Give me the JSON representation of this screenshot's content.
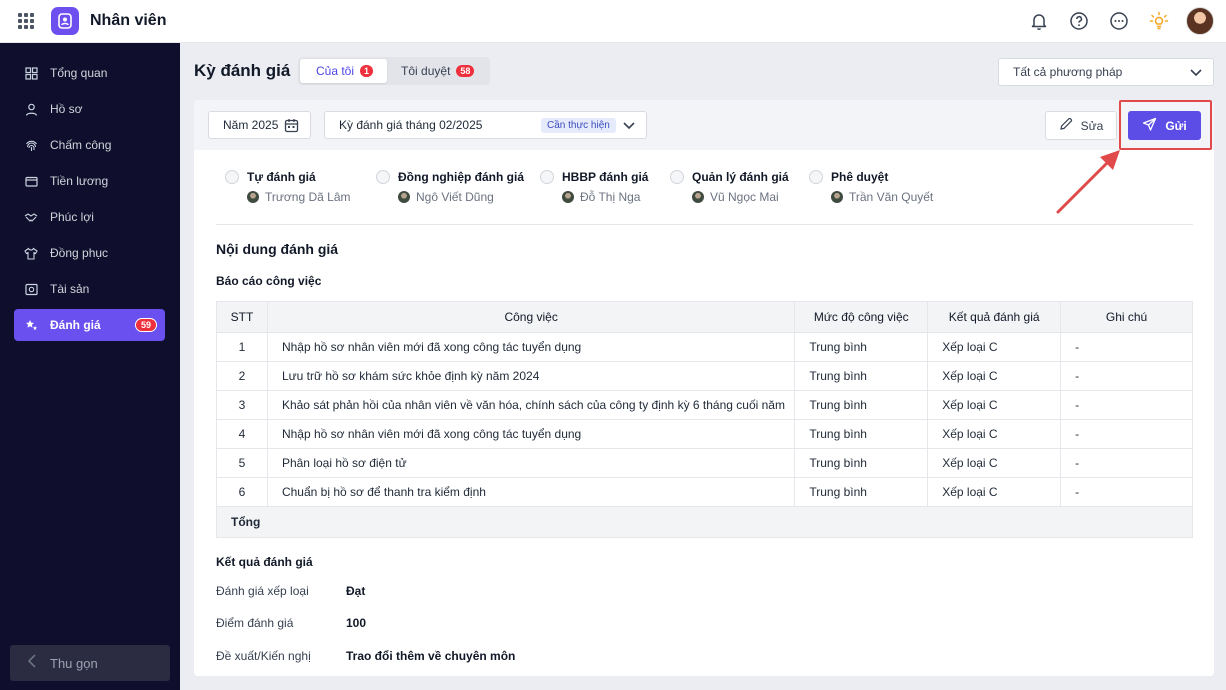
{
  "app": {
    "title": "Nhân viên"
  },
  "top_icons": [
    "bell-icon",
    "help-icon",
    "more-icon",
    "lightbulb-icon",
    "user-avatar"
  ],
  "sidebar": {
    "items": [
      {
        "label": "Tổng quan",
        "icon": "dashboard-icon"
      },
      {
        "label": "Hồ sơ",
        "icon": "user-icon"
      },
      {
        "label": "Chấm công",
        "icon": "fingerprint-icon"
      },
      {
        "label": "Tiền lương",
        "icon": "wallet-icon"
      },
      {
        "label": "Phúc lợi",
        "icon": "handshake-icon"
      },
      {
        "label": "Đồng phục",
        "icon": "shirt-icon"
      },
      {
        "label": "Tài sản",
        "icon": "asset-icon"
      },
      {
        "label": "Đánh giá",
        "icon": "star-icon",
        "badge": "59",
        "active": true
      }
    ],
    "collapse_label": "Thu gọn"
  },
  "page": {
    "title": "Kỳ đánh giá",
    "tabs": [
      {
        "label": "Của tôi",
        "badge": "1",
        "active": true
      },
      {
        "label": "Tôi duyệt",
        "badge": "58",
        "active": false
      }
    ],
    "method_select": "Tất cả phương pháp"
  },
  "filter": {
    "year": "Năm 2025",
    "period": "Kỳ đánh giá tháng 02/2025",
    "status": "Cần thực hiện",
    "edit_label": "Sửa",
    "send_label": "Gửi"
  },
  "steps": [
    {
      "title": "Tự đánh giá",
      "person": "Trương Dã Lâm"
    },
    {
      "title": "Đồng nghiệp đánh giá",
      "person": "Ngô Viết Dũng"
    },
    {
      "title": "HBBP đánh giá",
      "person": "Đỗ Thị Nga"
    },
    {
      "title": "Quản lý đánh giá",
      "person": "Vũ Ngọc Mai"
    },
    {
      "title": "Phê duyệt",
      "person": "Trần Văn Quyết"
    }
  ],
  "content": {
    "section_title": "Nội dung đánh giá",
    "report_title": "Báo cáo công việc",
    "columns": [
      "STT",
      "Công việc",
      "Mức độ công việc",
      "Kết quả đánh giá",
      "Ghi chú"
    ],
    "rows": [
      {
        "stt": "1",
        "task": "Nhập hồ sơ nhân viên mới đã xong công tác tuyển dụng",
        "level": "Trung bình",
        "result": "Xếp loại C",
        "note": "-"
      },
      {
        "stt": "2",
        "task": "Lưu trữ hồ sơ khám sức khỏe định kỳ năm 2024",
        "level": "Trung bình",
        "result": "Xếp loại C",
        "note": "-"
      },
      {
        "stt": "3",
        "task": "Khảo sát phản hồi của nhân viên về văn hóa, chính sách của công ty định kỳ 6 tháng cuối năm",
        "level": "Trung bình",
        "result": "Xếp loại C",
        "note": "-"
      },
      {
        "stt": "4",
        "task": "Nhập hồ sơ nhân viên mới đã xong công tác tuyển dụng",
        "level": "Trung bình",
        "result": "Xếp loại C",
        "note": "-"
      },
      {
        "stt": "5",
        "task": "Phân loại hồ sơ điện tử",
        "level": "Trung bình",
        "result": "Xếp loại C",
        "note": "-"
      },
      {
        "stt": "6",
        "task": "Chuẩn bị hồ sơ để thanh tra kiểm định",
        "level": "Trung bình",
        "result": "Xếp loại C",
        "note": "-"
      }
    ],
    "total_label": "Tổng"
  },
  "result": {
    "title": "Kết quả đánh giá",
    "rows": [
      {
        "key": "Đánh giá xếp loại",
        "value": "Đạt"
      },
      {
        "key": "Điểm đánh giá",
        "value": "100"
      },
      {
        "key": "Đề xuất/Kiến nghị",
        "value": "Trao đổi thêm về chuyên môn"
      }
    ]
  },
  "colors": {
    "accent": "#5b4de6",
    "sidebar_bg": "#0f0f2d",
    "badge": "#ef2f3b",
    "highlight": "#e04a4a"
  }
}
